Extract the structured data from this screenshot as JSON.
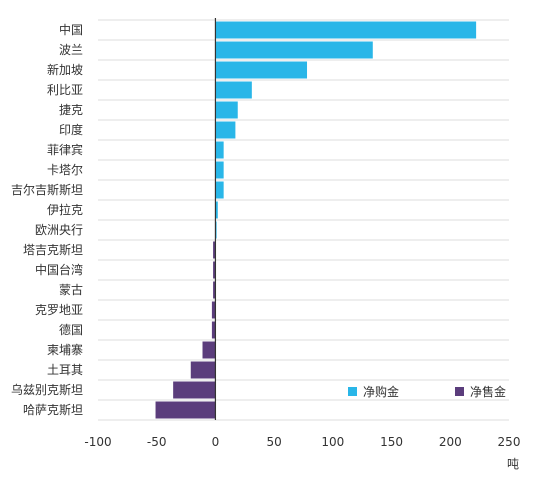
{
  "chart_data": {
    "type": "bar",
    "orientation": "horizontal",
    "categories": [
      "中国",
      "波兰",
      "新加坡",
      "利比亚",
      "捷克",
      "印度",
      "菲律宾",
      "卡塔尔",
      "吉尔吉斯斯坦",
      "伊拉克",
      "欧洲央行",
      "塔吉克斯坦",
      "中国台湾",
      "蒙古",
      "克罗地亚",
      "德国",
      "柬埔寨",
      "土耳其",
      "乌兹别克斯坦",
      "哈萨克斯坦"
    ],
    "values": [
      222,
      134,
      78,
      31,
      19,
      17,
      7,
      7,
      7,
      2,
      1,
      -2,
      -2,
      -2,
      -3,
      -3,
      -11,
      -21,
      -36,
      -51
    ],
    "xlim": [
      -100,
      250
    ],
    "xticks": [
      -100,
      -50,
      0,
      50,
      100,
      150,
      200,
      250
    ],
    "xunit": "吨",
    "grid": true,
    "legend_position": "bottom-right",
    "series": [
      {
        "name": "净购金",
        "color": "#29b6e8",
        "applies_to": "positive"
      },
      {
        "name": "净售金",
        "color": "#5b3d7c",
        "applies_to": "negative"
      }
    ]
  },
  "colors": {
    "positive": "#29b6e8",
    "negative": "#5b3d7c",
    "grid": "#dddddd",
    "axis": "#333333"
  }
}
